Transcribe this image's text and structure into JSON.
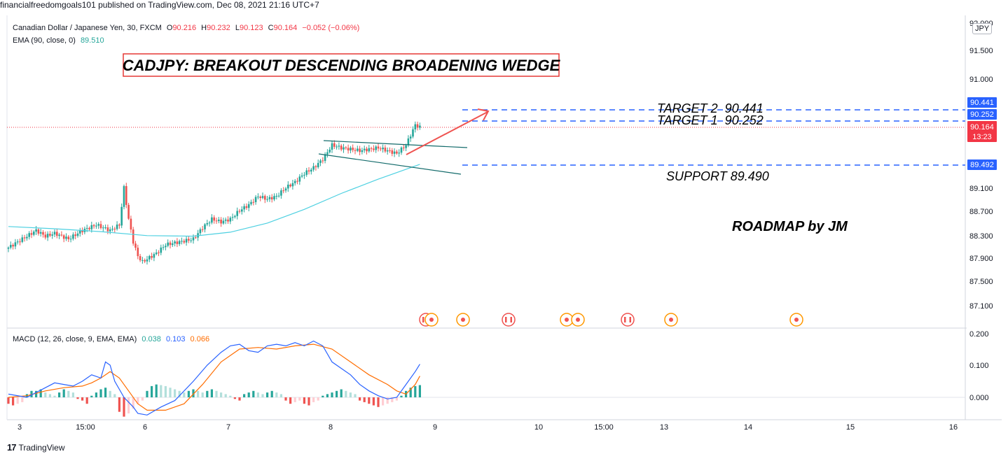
{
  "header": {
    "publish_line": "financialfreedomgoals101 published on TradingView.com, Dec 08, 2021 21:16 UTC+7"
  },
  "legend": {
    "symbol": "Canadian Dollar / Japanese Yen, 30, FXCM",
    "o_label": "O",
    "o_value": "90.216",
    "h_label": "H",
    "h_value": "90.232",
    "l_label": "L",
    "l_value": "90.123",
    "c_label": "C",
    "c_value": "90.164",
    "change": "−0.052 (−0.06%)",
    "ema_label": "EMA (90, close, 0)",
    "ema_value": "89.510",
    "macd_label": "MACD (12, 26, close, 9, EMA, EMA)",
    "macd_values": [
      "0.038",
      "0.103",
      "0.066"
    ]
  },
  "currency_badge": "JPY",
  "footer": {
    "brand": "TradingView"
  },
  "colors": {
    "up": "#26a69a",
    "down": "#ef5350",
    "ema": "#4dd0e1",
    "macd": "#2962ff",
    "signal": "#ff6d00",
    "annot_blue": "#2962ff",
    "arrow": "#ef5350",
    "wedge": "#136b6b",
    "price_red": "#f23645"
  },
  "chart_data": [
    {
      "type": "candlestick",
      "title": "CADJPY: BREAKOUT DESCENDING BROADENING WEDGE",
      "symbol": "Canadian Dollar / Japanese Yen",
      "interval": "30",
      "x_tick_labels": [
        "3",
        "15:00",
        "6",
        "7",
        "8",
        "9",
        "10",
        "15:00",
        "13",
        "14",
        "15",
        "16"
      ],
      "y_tick_labels": [
        "92.000",
        "91.500",
        "91.000",
        "89.100",
        "88.700",
        "88.300",
        "87.900",
        "87.500",
        "87.100"
      ],
      "ylim": [
        86.9,
        92.0
      ],
      "close_path": [
        [
          0,
          88.05
        ],
        [
          3,
          88.2
        ],
        [
          6,
          88.35
        ],
        [
          8,
          88.25
        ],
        [
          10,
          88.3
        ],
        [
          13,
          88.2
        ],
        [
          16,
          88.35
        ],
        [
          19,
          88.45
        ],
        [
          22,
          88.35
        ],
        [
          24,
          88.45
        ],
        [
          25,
          89.1
        ],
        [
          26,
          88.55
        ],
        [
          27,
          88.15
        ],
        [
          28,
          87.9
        ],
        [
          29,
          87.8
        ],
        [
          30,
          87.85
        ],
        [
          32,
          87.95
        ],
        [
          34,
          88.1
        ],
        [
          37,
          88.15
        ],
        [
          40,
          88.2
        ],
        [
          42,
          88.4
        ],
        [
          44,
          88.55
        ],
        [
          46,
          88.5
        ],
        [
          48,
          88.55
        ],
        [
          50,
          88.7
        ],
        [
          52,
          88.8
        ],
        [
          54,
          88.95
        ],
        [
          56,
          88.9
        ],
        [
          58,
          88.95
        ],
        [
          60,
          89.1
        ],
        [
          62,
          89.2
        ],
        [
          64,
          89.35
        ],
        [
          66,
          89.45
        ],
        [
          68,
          89.6
        ],
        [
          70,
          89.85
        ],
        [
          72,
          89.8
        ],
        [
          76,
          89.75
        ],
        [
          80,
          89.8
        ],
        [
          84,
          89.7
        ],
        [
          86,
          89.85
        ],
        [
          88,
          90.2
        ],
        [
          89,
          90.164
        ]
      ],
      "ema": {
        "name": "EMA (90, close, 0)",
        "path": [
          [
            0,
            88.42
          ],
          [
            10,
            88.38
          ],
          [
            20,
            88.33
          ],
          [
            30,
            88.26
          ],
          [
            40,
            88.25
          ],
          [
            48,
            88.32
          ],
          [
            56,
            88.48
          ],
          [
            64,
            88.72
          ],
          [
            72,
            89.0
          ],
          [
            80,
            89.25
          ],
          [
            89,
            89.51
          ]
        ]
      },
      "price_labels": [
        "90.441",
        "90.252",
        "90.164",
        "89.492"
      ],
      "countdown": "13:23",
      "levels": [
        {
          "label": "TARGET 2  90.441",
          "value": 90.441
        },
        {
          "label": "TARGET 1  90.252",
          "value": 90.252
        },
        {
          "label": "SUPPORT 89.490",
          "value": 89.492
        }
      ],
      "annotation": "ROADMAP by JM",
      "event_markers": [
        "ca",
        "other",
        "other",
        "ca",
        "other",
        "other",
        "ca",
        "other",
        "other"
      ]
    },
    {
      "type": "macd",
      "title": "MACD (12, 26, close, 9, EMA, EMA)",
      "y_tick_labels": [
        "0.200",
        "0.100",
        "0.000"
      ],
      "ylim": [
        -0.075,
        0.21
      ],
      "histogram": [
        -0.02,
        -0.025,
        -0.02,
        -0.015,
        0.01,
        0.02,
        0.02,
        0.025,
        0.015,
        0.01,
        0.005,
        0.015,
        0.025,
        0.02,
        0.015,
        -0.005,
        -0.01,
        -0.02,
        0.005,
        0.015,
        0.025,
        0.03,
        0.02,
        0.01,
        -0.045,
        -0.06,
        -0.05,
        -0.035,
        -0.02,
        -0.01,
        0.02,
        0.035,
        0.04,
        0.038,
        0.035,
        0.03,
        0.025,
        0.02,
        0.015,
        0.02,
        0.025,
        0.02,
        0.015,
        0.02,
        0.025,
        0.02,
        0.015,
        0.01,
        0.005,
        -0.005,
        -0.01,
        0.01,
        0.015,
        0.02,
        0.015,
        0.01,
        0.015,
        0.02,
        0.015,
        0.01,
        -0.01,
        -0.02,
        -0.015,
        -0.01,
        -0.02,
        -0.025,
        -0.015,
        -0.01,
        0.005,
        0.01,
        0.015,
        0.02,
        0.025,
        0.02,
        0.015,
        0.01,
        -0.01,
        -0.015,
        -0.02,
        -0.025,
        -0.03,
        -0.025,
        -0.02,
        -0.015,
        -0.01,
        0.005,
        0.02,
        0.03,
        0.035,
        0.038
      ],
      "macd_path": [
        [
          0,
          0.01
        ],
        [
          4,
          0.0
        ],
        [
          8,
          0.03
        ],
        [
          10,
          0.045
        ],
        [
          12,
          0.04
        ],
        [
          14,
          0.035
        ],
        [
          16,
          0.05
        ],
        [
          18,
          0.07
        ],
        [
          20,
          0.06
        ],
        [
          21,
          0.11
        ],
        [
          22,
          0.1
        ],
        [
          23,
          0.05
        ],
        [
          25,
          0.0
        ],
        [
          27,
          -0.03
        ],
        [
          28,
          -0.05
        ],
        [
          30,
          -0.055
        ],
        [
          33,
          -0.03
        ],
        [
          36,
          -0.01
        ],
        [
          40,
          0.05
        ],
        [
          43,
          0.1
        ],
        [
          46,
          0.14
        ],
        [
          48,
          0.16
        ],
        [
          50,
          0.165
        ],
        [
          52,
          0.145
        ],
        [
          54,
          0.14
        ],
        [
          56,
          0.16
        ],
        [
          58,
          0.165
        ],
        [
          60,
          0.16
        ],
        [
          62,
          0.17
        ],
        [
          64,
          0.16
        ],
        [
          66,
          0.175
        ],
        [
          68,
          0.16
        ],
        [
          70,
          0.11
        ],
        [
          72,
          0.09
        ],
        [
          74,
          0.07
        ],
        [
          76,
          0.04
        ],
        [
          78,
          0.02
        ],
        [
          80,
          0.005
        ],
        [
          82,
          -0.005
        ],
        [
          84,
          0.0
        ],
        [
          86,
          0.04
        ],
        [
          88,
          0.08
        ],
        [
          89,
          0.103
        ]
      ],
      "signal_path": [
        [
          0,
          0.0
        ],
        [
          4,
          0.005
        ],
        [
          8,
          0.02
        ],
        [
          12,
          0.03
        ],
        [
          16,
          0.035
        ],
        [
          18,
          0.045
        ],
        [
          20,
          0.06
        ],
        [
          22,
          0.08
        ],
        [
          24,
          0.06
        ],
        [
          26,
          0.02
        ],
        [
          28,
          -0.02
        ],
        [
          30,
          -0.04
        ],
        [
          34,
          -0.04
        ],
        [
          38,
          -0.02
        ],
        [
          42,
          0.04
        ],
        [
          46,
          0.11
        ],
        [
          50,
          0.15
        ],
        [
          54,
          0.155
        ],
        [
          58,
          0.15
        ],
        [
          62,
          0.16
        ],
        [
          66,
          0.165
        ],
        [
          70,
          0.15
        ],
        [
          74,
          0.11
        ],
        [
          78,
          0.07
        ],
        [
          82,
          0.04
        ],
        [
          84,
          0.02
        ],
        [
          86,
          0.01
        ],
        [
          88,
          0.04
        ],
        [
          89,
          0.066
        ]
      ]
    }
  ]
}
